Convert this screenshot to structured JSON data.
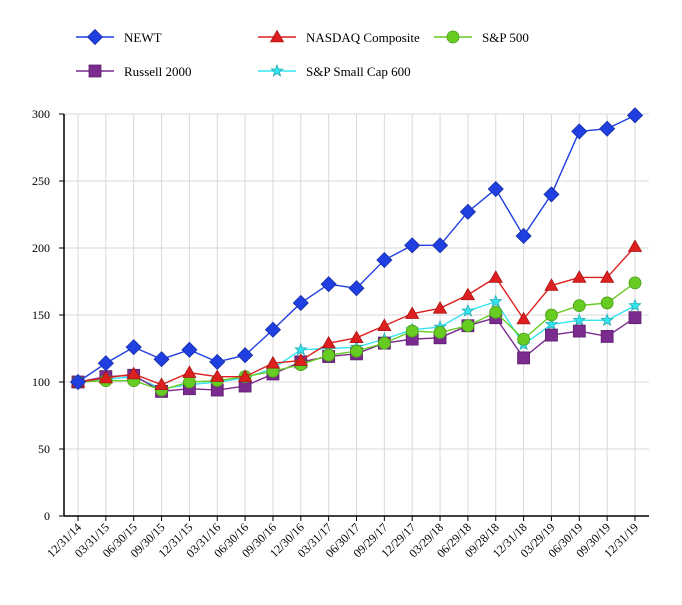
{
  "chart_data": {
    "type": "line",
    "title": "",
    "xlabel": "",
    "ylabel": "",
    "ylim": [
      0,
      300
    ],
    "yticks": [
      0,
      50,
      100,
      150,
      200,
      250,
      300
    ],
    "grid": true,
    "legend_position": "top",
    "categories": [
      "12/31/14",
      "03/31/15",
      "06/30/15",
      "09/30/15",
      "12/31/15",
      "03/31/16",
      "06/30/16",
      "09/30/16",
      "12/30/16",
      "03/31/17",
      "06/30/17",
      "09/29/17",
      "12/29/17",
      "03/29/18",
      "06/29/18",
      "09/28/18",
      "12/31/18",
      "03/29/19",
      "06/30/19",
      "09/30/19",
      "12/31/19"
    ],
    "series": [
      {
        "name": "NEWT",
        "color": "#1f3fe0",
        "marker": "diamond",
        "values": [
          100,
          114,
          126,
          117,
          124,
          115,
          120,
          139,
          159,
          173,
          170,
          191,
          202,
          202,
          227,
          244,
          209,
          240,
          287,
          289,
          299
        ]
      },
      {
        "name": "NASDAQ Composite",
        "color": "#dd1f1f",
        "marker": "triangle",
        "values": [
          100,
          103,
          106,
          98,
          107,
          104,
          104,
          114,
          116,
          129,
          133,
          142,
          151,
          155,
          165,
          178,
          147,
          172,
          178,
          178,
          201
        ]
      },
      {
        "name": "S&P 500",
        "color": "#66cc22",
        "marker": "circle",
        "values": [
          100,
          101,
          101,
          94,
          100,
          101,
          104,
          108,
          113,
          120,
          123,
          129,
          138,
          137,
          142,
          152,
          132,
          150,
          157,
          159,
          174
        ]
      },
      {
        "name": "Russell 2000",
        "color": "#7b2a8f",
        "marker": "square",
        "values": [
          100,
          104,
          105,
          93,
          95,
          94,
          97,
          106,
          115,
          119,
          121,
          129,
          132,
          133,
          142,
          148,
          118,
          135,
          138,
          134,
          148
        ]
      },
      {
        "name": "S&P Small Cap 600",
        "color": "#33e5f0",
        "marker": "star",
        "values": [
          100,
          102,
          104,
          95,
          98,
          100,
          103,
          110,
          124,
          125,
          126,
          132,
          139,
          141,
          153,
          160,
          128,
          143,
          146,
          146,
          157
        ]
      }
    ],
    "legend": {
      "rows": [
        [
          "NEWT",
          "NASDAQ Composite",
          "S&P 500"
        ],
        [
          "Russell 2000",
          "S&P Small Cap 600"
        ]
      ]
    }
  }
}
